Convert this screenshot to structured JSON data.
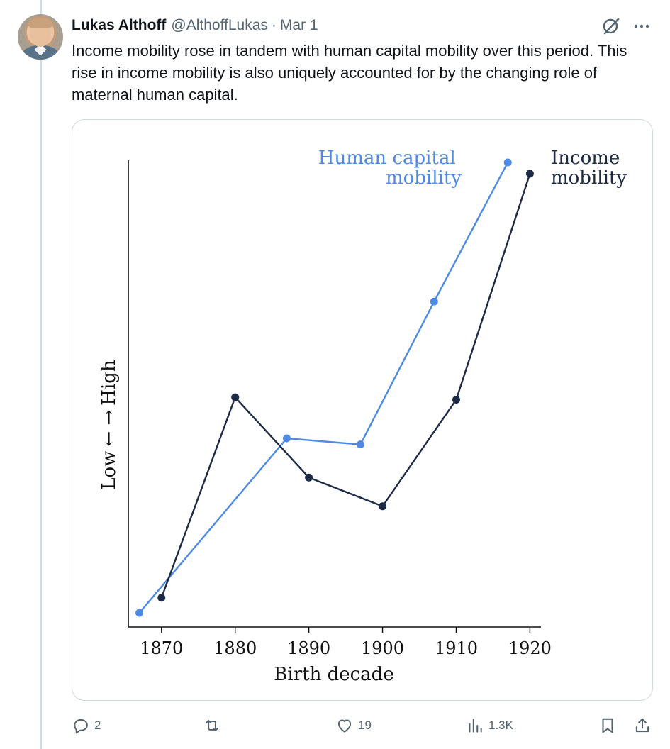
{
  "tweet": {
    "author_name": "Lukas Althoff",
    "handle": "@AlthoffLukas",
    "separator": "·",
    "date": "Mar 1",
    "text": "Income mobility rose in tandem with human capital mobility over this period. This rise in income mobility is also uniquely accounted for by the changing role of maternal human capital."
  },
  "icons": {
    "grok": "grok-icon",
    "more": "more-icon",
    "reply": "reply-icon",
    "retweet": "retweet-icon",
    "like": "heart-icon",
    "views": "views-icon",
    "bookmark": "bookmark-icon",
    "share": "share-icon"
  },
  "actions": {
    "replies": "2",
    "retweets": "",
    "likes": "19",
    "views": "1.3K"
  },
  "colors": {
    "human_capital": "#4d8ae3",
    "income": "#1c2a45",
    "muted": "#536471"
  },
  "chart_data": {
    "type": "line",
    "xlabel": "Birth decade",
    "ylabel_low": "Low",
    "ylabel_high": "High",
    "x_ticks": [
      1870,
      1880,
      1890,
      1900,
      1910,
      1920
    ],
    "xlim": [
      1865.5,
      1921.5
    ],
    "ylim": [
      0,
      100
    ],
    "series": [
      {
        "name": "Human capital mobility",
        "label_lines": [
          "Human capital",
          "mobility"
        ],
        "color": "#4d8ae3",
        "x": [
          1867,
          1887,
          1897,
          1907,
          1917
        ],
        "y": [
          3,
          40,
          38.7,
          69,
          98.5
        ]
      },
      {
        "name": "Income mobility",
        "label_lines": [
          "Income",
          "mobility"
        ],
        "color": "#1c2a45",
        "x": [
          1870,
          1880,
          1890,
          1900,
          1910,
          1920
        ],
        "y": [
          6.2,
          48.7,
          31.7,
          25.6,
          48.2,
          96.1
        ]
      }
    ]
  }
}
